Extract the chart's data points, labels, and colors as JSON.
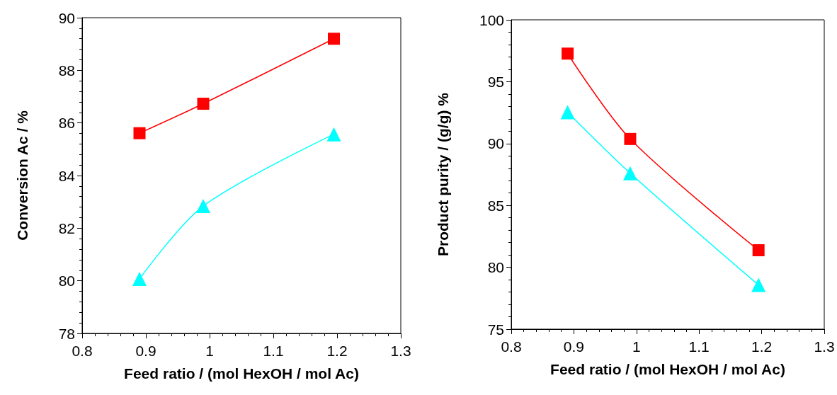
{
  "chart_data": [
    {
      "type": "line",
      "xlabel": "Feed ratio / (mol HexOH / mol Ac)",
      "ylabel": "Conversion Ac / %",
      "xlim": [
        0.8,
        1.3
      ],
      "xticks": [
        0.8,
        0.9,
        1,
        1.1,
        1.2,
        1.3
      ],
      "ylim": [
        78,
        90
      ],
      "yticks": [
        78,
        80,
        82,
        84,
        86,
        88,
        90
      ],
      "grid": false,
      "series": [
        {
          "color": "#00ffff",
          "marker": "triangle",
          "x": [
            0.89,
            0.99,
            1.195
          ],
          "values": [
            80.07,
            82.84,
            85.57
          ]
        },
        {
          "color": "#ff0000",
          "marker": "square",
          "x": [
            0.89,
            0.99,
            1.195
          ],
          "values": [
            85.61,
            86.73,
            89.2
          ]
        }
      ]
    },
    {
      "type": "line",
      "xlabel": "Feed ratio / (mol HexOH / mol Ac)",
      "ylabel": "Product purity / (g/g) %",
      "xlim": [
        0.8,
        1.3
      ],
      "xticks": [
        0.8,
        0.9,
        1,
        1.1,
        1.2,
        1.3
      ],
      "ylim": [
        75,
        100
      ],
      "yticks": [
        75,
        80,
        85,
        90,
        95,
        100
      ],
      "grid": false,
      "series": [
        {
          "color": "#00ffff",
          "marker": "triangle",
          "x": [
            0.89,
            0.99,
            1.195
          ],
          "values": [
            92.53,
            87.6,
            78.57
          ]
        },
        {
          "color": "#ff0000",
          "marker": "square",
          "x": [
            0.89,
            0.99,
            1.195
          ],
          "values": [
            97.27,
            90.37,
            81.38
          ]
        }
      ]
    }
  ]
}
